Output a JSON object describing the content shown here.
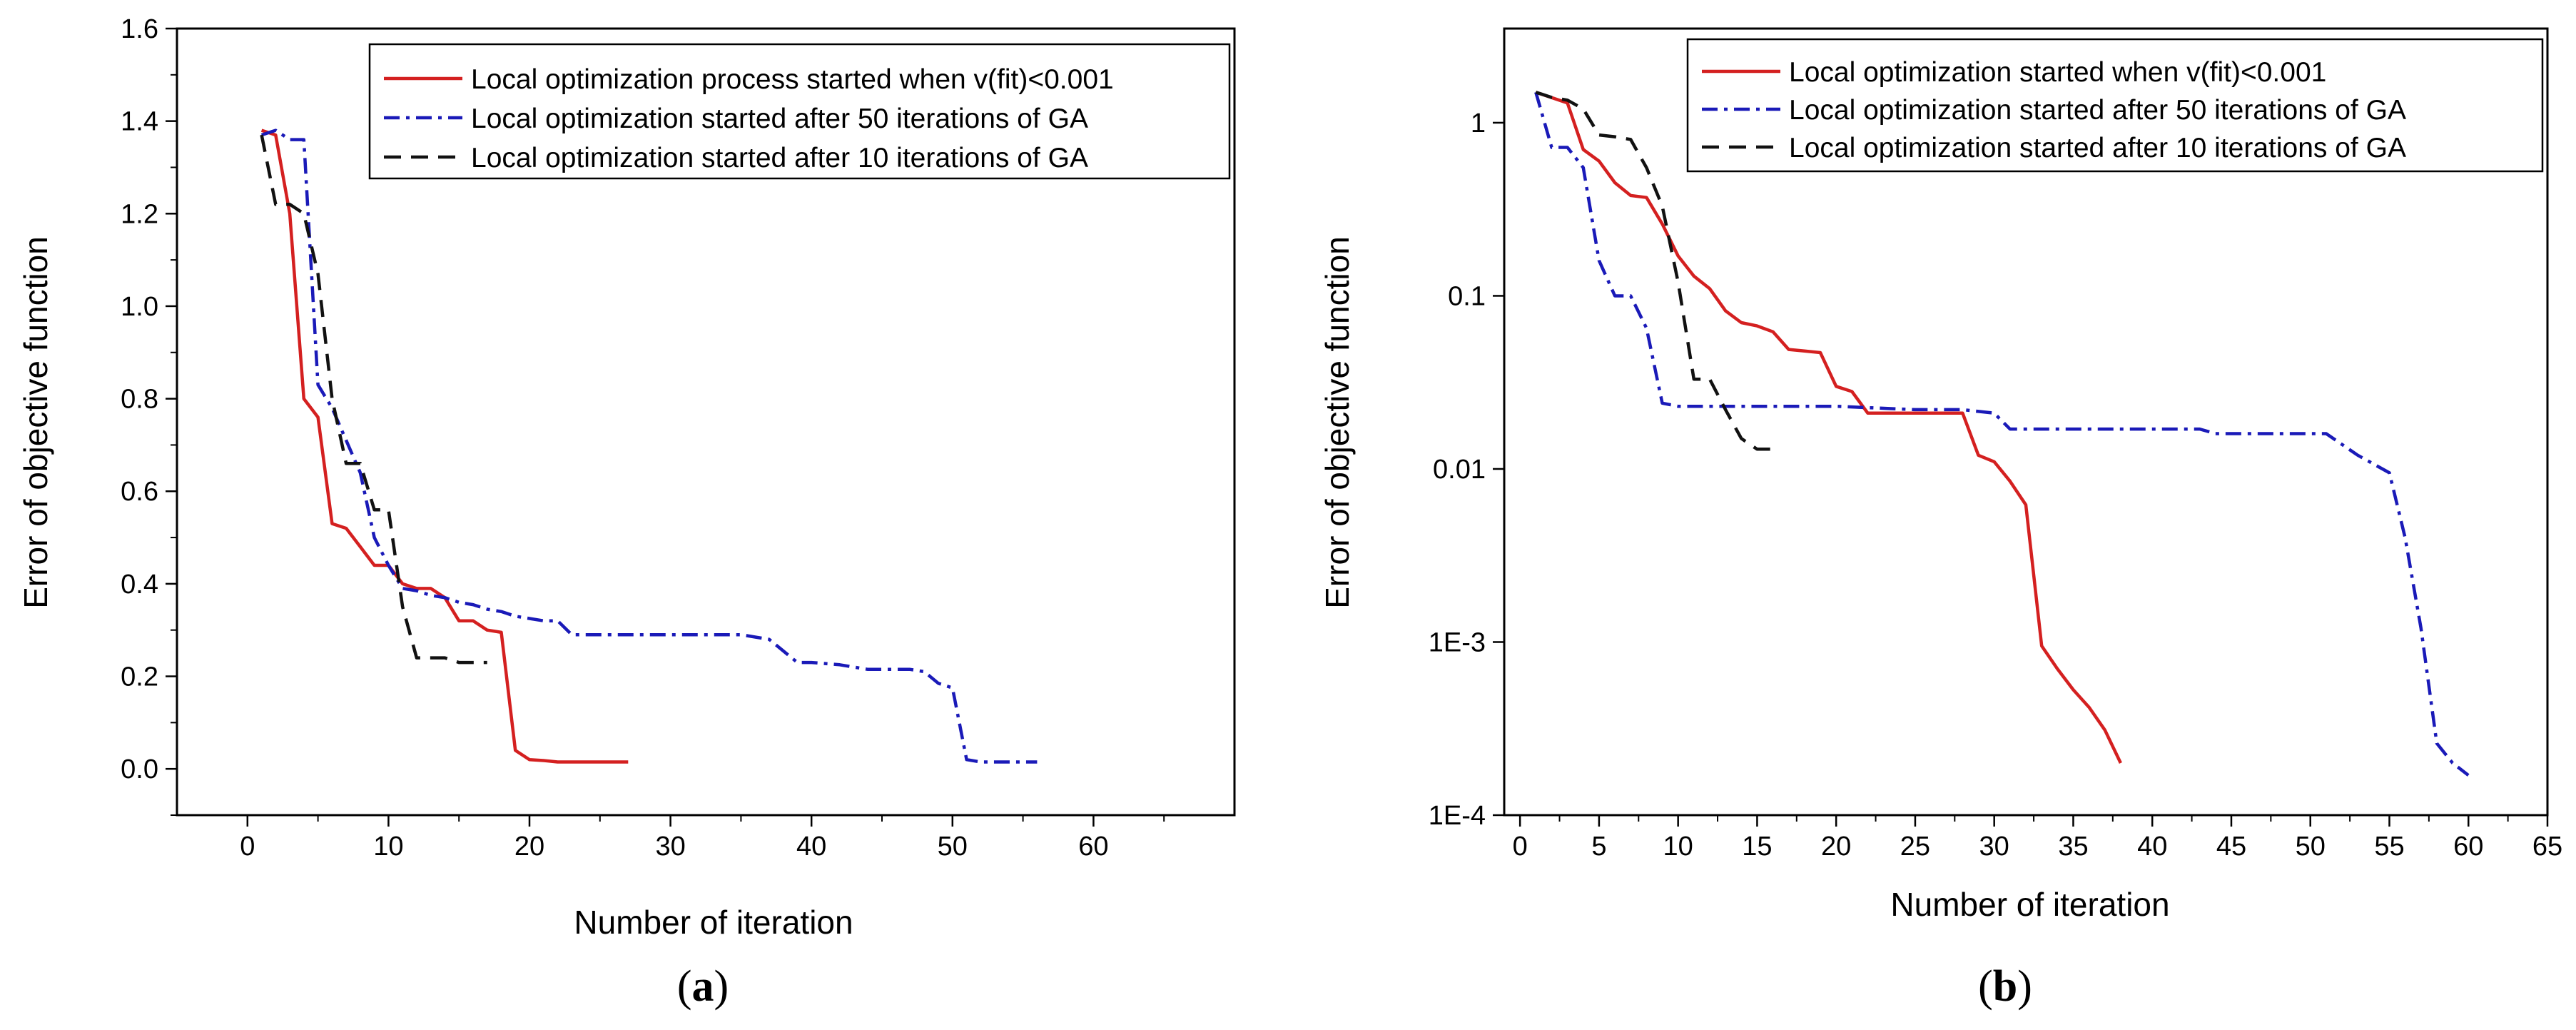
{
  "chart_data": [
    {
      "panel": "a",
      "type": "line",
      "panel_label_open": "(",
      "panel_label_letter": "a",
      "panel_label_close": ")",
      "xlabel": "Number of iteration",
      "ylabel": "Error of objective function",
      "yscale": "linear",
      "xlim": [
        -5,
        70
      ],
      "ylim": [
        -0.1,
        1.6
      ],
      "xticks": [
        0,
        10,
        20,
        30,
        40,
        50,
        60
      ],
      "yticks": [
        0.0,
        0.2,
        0.4,
        0.6,
        0.8,
        1.0,
        1.2,
        1.4,
        1.6
      ],
      "yticklabels": [
        "0.0",
        "0.2",
        "0.4",
        "0.6",
        "0.8",
        "1.0",
        "1.2",
        "1.4",
        "1.6"
      ],
      "legend_position": "top-right",
      "series": [
        {
          "name": "Local optimization process started when v(fit)<0.001",
          "color": "#d42020",
          "style": "solid",
          "x": [
            1,
            2,
            3,
            4,
            5,
            6,
            7,
            8,
            9,
            10,
            11,
            12,
            13,
            14,
            15,
            16,
            17,
            18,
            19,
            20,
            21,
            22,
            23,
            24,
            25,
            26,
            27
          ],
          "y": [
            1.38,
            1.37,
            1.2,
            0.8,
            0.76,
            0.53,
            0.52,
            0.48,
            0.44,
            0.44,
            0.4,
            0.39,
            0.39,
            0.37,
            0.32,
            0.32,
            0.3,
            0.295,
            0.04,
            0.02,
            0.018,
            0.015,
            0.015,
            0.015,
            0.015,
            0.015,
            0.015
          ]
        },
        {
          "name": "Local optimization started after 50 iterations of GA",
          "color": "#1a1ab8",
          "style": "dashdot",
          "x": [
            1,
            2,
            3,
            4,
            5,
            6,
            7,
            8,
            9,
            10,
            11,
            12,
            13,
            14,
            15,
            16,
            17,
            18,
            19,
            20,
            21,
            22,
            23,
            24,
            25,
            30,
            35,
            37,
            39,
            40,
            42,
            44,
            47,
            48,
            49,
            50,
            51,
            52,
            53,
            54,
            55,
            56
          ],
          "y": [
            1.37,
            1.38,
            1.36,
            1.36,
            0.83,
            0.78,
            0.71,
            0.64,
            0.5,
            0.44,
            0.39,
            0.385,
            0.375,
            0.37,
            0.36,
            0.355,
            0.345,
            0.34,
            0.33,
            0.325,
            0.32,
            0.32,
            0.29,
            0.29,
            0.29,
            0.29,
            0.29,
            0.28,
            0.23,
            0.23,
            0.225,
            0.215,
            0.215,
            0.21,
            0.185,
            0.175,
            0.02,
            0.015,
            0.015,
            0.015,
            0.015,
            0.015
          ]
        },
        {
          "name": "Local optimization started after 10 iterations of GA",
          "color": "#111111",
          "style": "dashed",
          "x": [
            1,
            2,
            3,
            4,
            5,
            6,
            7,
            8,
            9,
            10,
            11,
            12,
            13,
            14,
            15,
            16,
            17
          ],
          "y": [
            1.37,
            1.22,
            1.22,
            1.2,
            1.07,
            0.8,
            0.66,
            0.66,
            0.56,
            0.56,
            0.35,
            0.24,
            0.24,
            0.24,
            0.23,
            0.23,
            0.23
          ]
        }
      ]
    },
    {
      "panel": "b",
      "type": "line",
      "panel_label_open": "(",
      "panel_label_letter": "b",
      "panel_label_close": ")",
      "xlabel": "Number of iteration",
      "ylabel": "Error of objective function",
      "yscale": "log",
      "xlim": [
        -1,
        65
      ],
      "ylim": [
        0.0001,
        3.5
      ],
      "xticks": [
        0,
        5,
        10,
        15,
        20,
        25,
        30,
        35,
        40,
        45,
        50,
        55,
        60,
        65
      ],
      "yticks": [
        0.0001,
        0.001,
        0.01,
        0.1,
        1
      ],
      "yticklabels": [
        "1E-4",
        "1E-3",
        "0.01",
        "0.1",
        "1"
      ],
      "legend_position": "top-right",
      "series": [
        {
          "name": "Local optimization started when v(fit)<0.001",
          "color": "#d42020",
          "style": "solid",
          "x": [
            1,
            3,
            4,
            5,
            6,
            7,
            8,
            9,
            10,
            11,
            12,
            13,
            14,
            15,
            16,
            17,
            18,
            19,
            20,
            21,
            22,
            23,
            24,
            25,
            26,
            27,
            28,
            29,
            30,
            31,
            32,
            33,
            34,
            35,
            36,
            37,
            38
          ],
          "y": [
            1.5,
            1.3,
            0.7,
            0.6,
            0.45,
            0.38,
            0.37,
            0.26,
            0.17,
            0.13,
            0.11,
            0.082,
            0.07,
            0.067,
            0.062,
            0.049,
            0.048,
            0.047,
            0.03,
            0.028,
            0.021,
            0.021,
            0.021,
            0.021,
            0.021,
            0.021,
            0.021,
            0.012,
            0.011,
            0.0085,
            0.0062,
            0.00095,
            0.0007,
            0.00053,
            0.00042,
            0.00031,
            0.0002
          ]
        },
        {
          "name": "Local optimization started after 50 iterations of GA",
          "color": "#1a1ab8",
          "style": "dashdot",
          "x": [
            1,
            2,
            3,
            4,
            5,
            6,
            7,
            8,
            9,
            10,
            15,
            20,
            25,
            28,
            30,
            31,
            35,
            40,
            43,
            44,
            50,
            51,
            53,
            55,
            56,
            57,
            58,
            59,
            60
          ],
          "y": [
            1.5,
            0.72,
            0.72,
            0.55,
            0.16,
            0.1,
            0.1,
            0.065,
            0.024,
            0.023,
            0.023,
            0.023,
            0.022,
            0.022,
            0.021,
            0.017,
            0.017,
            0.017,
            0.017,
            0.016,
            0.016,
            0.016,
            0.012,
            0.0095,
            0.004,
            0.0012,
            0.00026,
            0.0002,
            0.00017
          ]
        },
        {
          "name": "Local optimization started after 10 iterations of GA",
          "color": "#111111",
          "style": "dashed",
          "x": [
            1,
            2,
            3,
            4,
            5,
            6,
            7,
            8,
            9,
            10,
            11,
            12,
            13,
            14,
            15,
            16
          ],
          "y": [
            1.5,
            1.4,
            1.35,
            1.2,
            0.85,
            0.83,
            0.8,
            0.55,
            0.33,
            0.12,
            0.033,
            0.033,
            0.022,
            0.015,
            0.013,
            0.013
          ]
        }
      ]
    }
  ]
}
